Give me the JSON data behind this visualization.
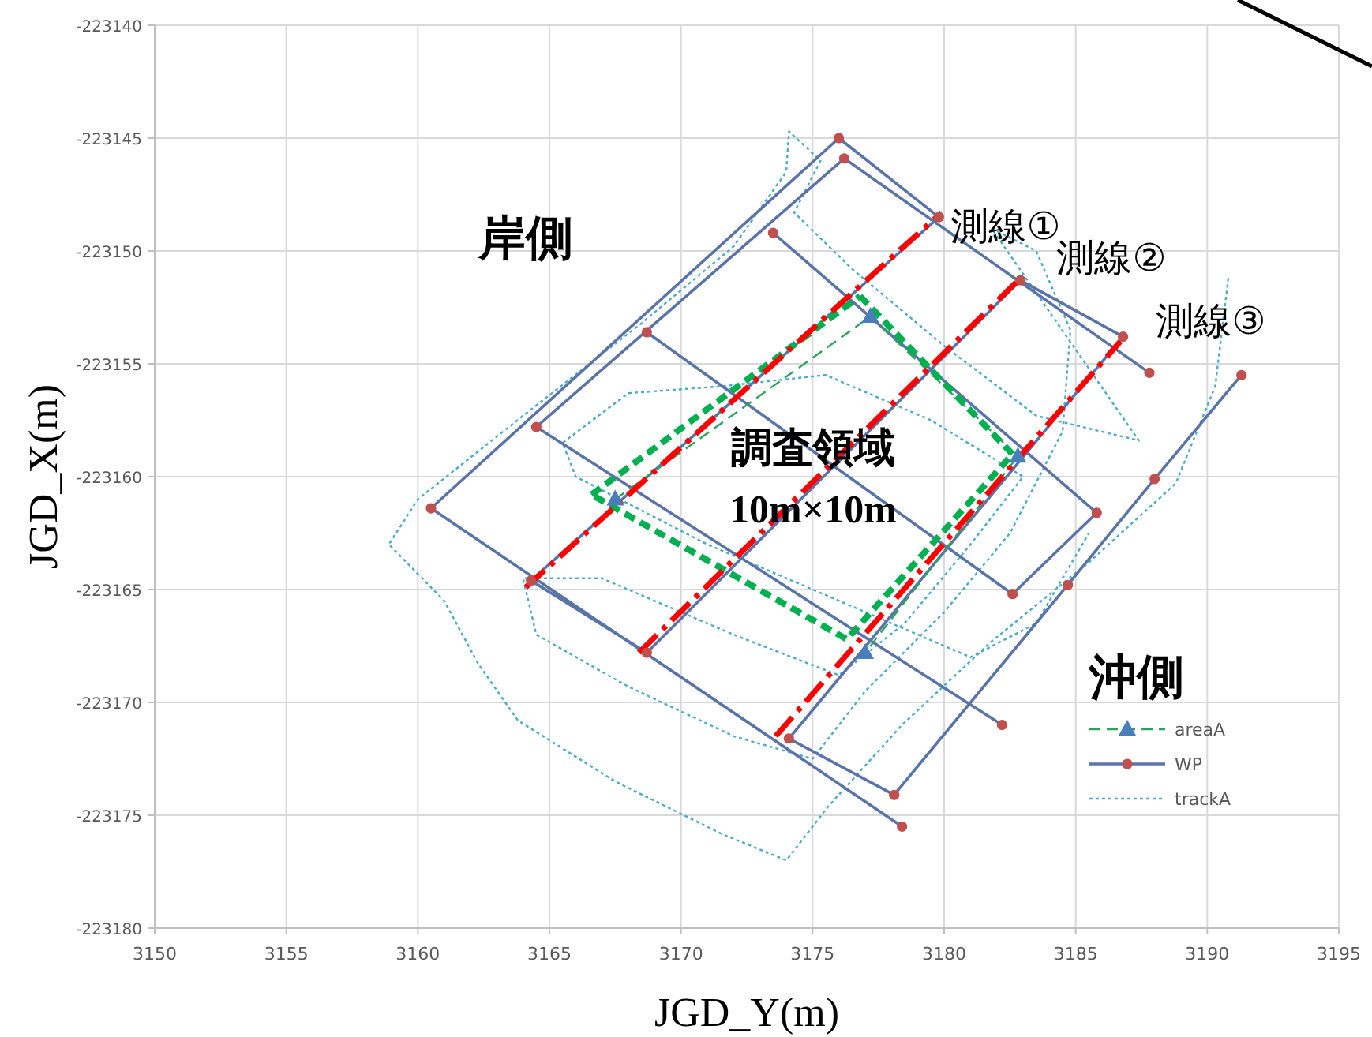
{
  "chart_data": {
    "type": "line",
    "xlabel": "JGD_Y(m)",
    "ylabel": "JGD_X(m)",
    "xlim": [
      3150,
      3195
    ],
    "ylim": [
      -223180,
      -223140
    ],
    "xticks": [
      3150,
      3155,
      3160,
      3165,
      3170,
      3175,
      3180,
      3185,
      3190,
      3195
    ],
    "yticks": [
      -223180,
      -223175,
      -223170,
      -223165,
      -223160,
      -223155,
      -223150,
      -223145,
      -223140
    ],
    "grid": true,
    "legend": "bottom right",
    "series": [
      {
        "name": "trackA",
        "color": "#4bacc6",
        "line_style": "dotted",
        "marker": "none",
        "x": [
          3190.8,
          3190.3,
          3188.8,
          3185.5,
          3181.8,
          3178.4,
          3175.6,
          3174.0,
          3171.5,
          3167.5,
          3163.8,
          3162.3,
          3161.0,
          3158.9,
          3160.0,
          3164.0,
          3168.5,
          3172.0,
          3174.0,
          3174.1,
          3175.3,
          3174.3,
          3176.5,
          3180.0,
          3183.5,
          3187.4,
          3181.8,
          3183.5,
          3184.8,
          3184.5,
          3182.5,
          3180.0,
          3177.0,
          3175.0,
          3172.0,
          3168.0,
          3164.5,
          3164.0,
          3167.0,
          3172.0,
          3176.0,
          3178.5,
          3181.0,
          3183.0,
          3179.5,
          3175.5,
          3171.5,
          3168.0,
          3165.5,
          3166.0,
          3171.0,
          3176.0,
          3181.0,
          3183.5,
          3185.5
        ],
        "values": [
          -223151.2,
          -223156.0,
          -223160.3,
          -223163.8,
          -223167.3,
          -223171.0,
          -223174.6,
          -223177.0,
          -223175.8,
          -223173.5,
          -223170.8,
          -223168.3,
          -223165.5,
          -223163.0,
          -223161.0,
          -223157.3,
          -223153.2,
          -223149.8,
          -223146.5,
          -223144.7,
          -223146.0,
          -223148.3,
          -223150.8,
          -223154.2,
          -223157.3,
          -223158.4,
          -223149.0,
          -223150.0,
          -223153.5,
          -223158.0,
          -223162.5,
          -223166.0,
          -223169.5,
          -223172.5,
          -223171.5,
          -223169.3,
          -223167.0,
          -223164.5,
          -223164.5,
          -223167.0,
          -223168.8,
          -223166.5,
          -223163.0,
          -223160.0,
          -223157.5,
          -223155.5,
          -223156.0,
          -223156.3,
          -223158.5,
          -223160.0,
          -223163.0,
          -223165.5,
          -223168.0,
          -223166.5,
          -223162.5
        ]
      },
      {
        "name": "WP",
        "color": "#5a74aa",
        "line_style": "solid",
        "marker": "circle",
        "x": [
          3178.4,
          3160.5,
          3176.0,
          3179.8,
          3164.3,
          3168.7,
          3182.9,
          3186.8,
          3174.1,
          3178.1,
          3184.7,
          3188.0,
          3191.3,
          null,
          3182.2,
          3164.5,
          3176.2,
          3187.8,
          null,
          3168.7,
          3182.6,
          3185.8,
          3173.5
        ],
        "values": [
          -223175.5,
          -223161.4,
          -223145.0,
          -223148.5,
          -223164.6,
          -223167.8,
          -223151.3,
          -223153.8,
          -223171.6,
          -223174.1,
          -223164.8,
          -223160.1,
          -223155.5,
          null,
          -223171.0,
          -223157.8,
          -223145.9,
          -223155.4,
          null,
          -223153.6,
          -223165.2,
          -223161.6,
          -223149.2
        ],
        "colors": [
          "#c0504d",
          "#c0504d",
          "#c0504d",
          "#c0504d",
          "#c0504d",
          "#c0504d",
          "#c0504d",
          "#c0504d",
          "#c0504d",
          "#c0504d",
          "#c0504d",
          "#c0504d",
          "#c0504d",
          null,
          "#c0504d",
          "#c0504d",
          "#c0504d",
          "#c0504d",
          null,
          "#c0504d",
          "#c0504d",
          "#c0504d",
          "#c0504d"
        ]
      },
      {
        "name": "areaA",
        "color": "#2ca25f",
        "line_style": "dashed",
        "marker": "triangle",
        "x": [
          3167.5,
          3177.2,
          3182.8,
          3177.0
        ],
        "values": [
          -223161.0,
          -223152.9,
          -223159.1,
          -223167.8
        ],
        "colors": [
          "#4a7ebb",
          "#4a7ebb",
          "#4a7ebb",
          "#4a7ebb"
        ]
      },
      {
        "color": "#00b050",
        "line_style": "dashed",
        "marker": "none",
        "x": [
          3176.8,
          3182.6,
          3176.3,
          3166.6
        ],
        "values": [
          -223152.0,
          -223159.0,
          -223167.2,
          -223160.8
        ]
      },
      {
        "color": "#00b050",
        "line_style": "dashed",
        "marker": "none",
        "x": [
          3166.6,
          3176.8
        ],
        "values": [
          -223160.8,
          -223152.0
        ]
      },
      {
        "color": "#ff0000",
        "line_style": "dashed",
        "marker": "none",
        "x": [
          3164.1,
          3179.9
        ],
        "values": [
          -223164.9,
          -223148.3
        ]
      },
      {
        "color": "#ff0000",
        "line_style": "dashed",
        "marker": "none",
        "x": [
          3168.4,
          3182.9
        ],
        "values": [
          -223167.8,
          -223151.2
        ]
      },
      {
        "color": "#ff0000",
        "line_style": "dashed",
        "marker": "none",
        "x": [
          3173.6,
          3186.7
        ],
        "values": [
          -223171.5,
          -223154.0
        ]
      }
    ],
    "annotations": [
      "岸側",
      "測線①",
      "測線②",
      "測線③",
      "調査領域",
      "10m×10m",
      "沖側"
    ]
  }
}
